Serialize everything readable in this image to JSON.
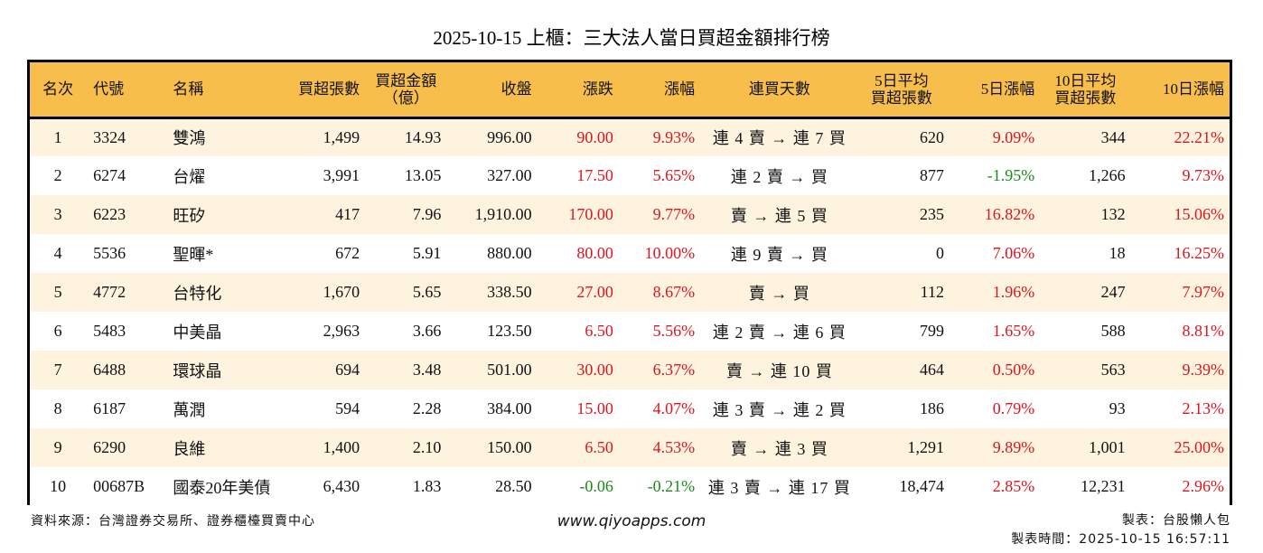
{
  "title": "2025-10-15 上櫃：三大法人當日買超金額排行榜",
  "columns": [
    {
      "key": "rank",
      "label": "名次"
    },
    {
      "key": "code",
      "label": "代號"
    },
    {
      "key": "name",
      "label": "名稱"
    },
    {
      "key": "net_buy_lots",
      "label": "買超張數"
    },
    {
      "key": "net_buy_amount",
      "label": "買超金額\n（億）"
    },
    {
      "key": "close",
      "label": "收盤"
    },
    {
      "key": "change",
      "label": "漲跌"
    },
    {
      "key": "change_pct",
      "label": "漲幅"
    },
    {
      "key": "streak",
      "label": "連買天數"
    },
    {
      "key": "avg5_lots",
      "label": "5日平均\n買超張數"
    },
    {
      "key": "pct5",
      "label": "5日漲幅"
    },
    {
      "key": "avg10_lots",
      "label": "10日平均\n買超張數"
    },
    {
      "key": "pct10",
      "label": "10日漲幅"
    }
  ],
  "colors": {
    "header_bg": "#f8be4b",
    "row_alt_bg": "#fdf3df",
    "up": "#e0141e",
    "down": "#1a8a1a"
  },
  "rows": [
    {
      "rank": "1",
      "code": "3324",
      "name": "雙鴻",
      "net_buy_lots": "1,499",
      "net_buy_amount": "14.93",
      "close": "996.00",
      "change": "90.00",
      "change_pct": "9.93%",
      "streak": "連 4 賣 → 連 7 買",
      "avg5_lots": "620",
      "pct5": "9.09%",
      "avg10_lots": "344",
      "pct10": "22.21%",
      "change_dir": "up",
      "pct5_dir": "up",
      "pct10_dir": "up"
    },
    {
      "rank": "2",
      "code": "6274",
      "name": "台燿",
      "net_buy_lots": "3,991",
      "net_buy_amount": "13.05",
      "close": "327.00",
      "change": "17.50",
      "change_pct": "5.65%",
      "streak": "連 2 賣 → 買",
      "avg5_lots": "877",
      "pct5": "-1.95%",
      "avg10_lots": "1,266",
      "pct10": "9.73%",
      "change_dir": "up",
      "pct5_dir": "down",
      "pct10_dir": "up"
    },
    {
      "rank": "3",
      "code": "6223",
      "name": "旺矽",
      "net_buy_lots": "417",
      "net_buy_amount": "7.96",
      "close": "1,910.00",
      "change": "170.00",
      "change_pct": "9.77%",
      "streak": "賣 → 連 5 買",
      "avg5_lots": "235",
      "pct5": "16.82%",
      "avg10_lots": "132",
      "pct10": "15.06%",
      "change_dir": "up",
      "pct5_dir": "up",
      "pct10_dir": "up"
    },
    {
      "rank": "4",
      "code": "5536",
      "name": "聖暉*",
      "net_buy_lots": "672",
      "net_buy_amount": "5.91",
      "close": "880.00",
      "change": "80.00",
      "change_pct": "10.00%",
      "streak": "連 9 賣 → 買",
      "avg5_lots": "0",
      "pct5": "7.06%",
      "avg10_lots": "18",
      "pct10": "16.25%",
      "change_dir": "up",
      "pct5_dir": "up",
      "pct10_dir": "up"
    },
    {
      "rank": "5",
      "code": "4772",
      "name": "台特化",
      "net_buy_lots": "1,670",
      "net_buy_amount": "5.65",
      "close": "338.50",
      "change": "27.00",
      "change_pct": "8.67%",
      "streak": "賣 → 買",
      "avg5_lots": "112",
      "pct5": "1.96%",
      "avg10_lots": "247",
      "pct10": "7.97%",
      "change_dir": "up",
      "pct5_dir": "up",
      "pct10_dir": "up"
    },
    {
      "rank": "6",
      "code": "5483",
      "name": "中美晶",
      "net_buy_lots": "2,963",
      "net_buy_amount": "3.66",
      "close": "123.50",
      "change": "6.50",
      "change_pct": "5.56%",
      "streak": "連 2 賣 → 連 6 買",
      "avg5_lots": "799",
      "pct5": "1.65%",
      "avg10_lots": "588",
      "pct10": "8.81%",
      "change_dir": "up",
      "pct5_dir": "up",
      "pct10_dir": "up"
    },
    {
      "rank": "7",
      "code": "6488",
      "name": "環球晶",
      "net_buy_lots": "694",
      "net_buy_amount": "3.48",
      "close": "501.00",
      "change": "30.00",
      "change_pct": "6.37%",
      "streak": "賣 → 連 10 買",
      "avg5_lots": "464",
      "pct5": "0.50%",
      "avg10_lots": "563",
      "pct10": "9.39%",
      "change_dir": "up",
      "pct5_dir": "up",
      "pct10_dir": "up"
    },
    {
      "rank": "8",
      "code": "6187",
      "name": "萬潤",
      "net_buy_lots": "594",
      "net_buy_amount": "2.28",
      "close": "384.00",
      "change": "15.00",
      "change_pct": "4.07%",
      "streak": "連 3 賣 → 連 2 買",
      "avg5_lots": "186",
      "pct5": "0.79%",
      "avg10_lots": "93",
      "pct10": "2.13%",
      "change_dir": "up",
      "pct5_dir": "up",
      "pct10_dir": "up"
    },
    {
      "rank": "9",
      "code": "6290",
      "name": "良維",
      "net_buy_lots": "1,400",
      "net_buy_amount": "2.10",
      "close": "150.00",
      "change": "6.50",
      "change_pct": "4.53%",
      "streak": "賣 → 連 3 買",
      "avg5_lots": "1,291",
      "pct5": "9.89%",
      "avg10_lots": "1,001",
      "pct10": "25.00%",
      "change_dir": "up",
      "pct5_dir": "up",
      "pct10_dir": "up"
    },
    {
      "rank": "10",
      "code": "00687B",
      "name": "國泰20年美債",
      "net_buy_lots": "6,430",
      "net_buy_amount": "1.83",
      "close": "28.50",
      "change": "-0.06",
      "change_pct": "-0.21%",
      "streak": "連 3 賣 → 連 17 買",
      "avg5_lots": "18,474",
      "pct5": "2.85%",
      "avg10_lots": "12,231",
      "pct10": "2.96%",
      "change_dir": "down",
      "pct5_dir": "up",
      "pct10_dir": "up"
    }
  ],
  "footer": {
    "source": "資料來源：台灣證券交易所、證券櫃檯買賣中心",
    "website": "www.qiyoapps.com",
    "maker": "製表：台股懶人包",
    "made_time": "製表時間：2025-10-15 16:57:11"
  }
}
